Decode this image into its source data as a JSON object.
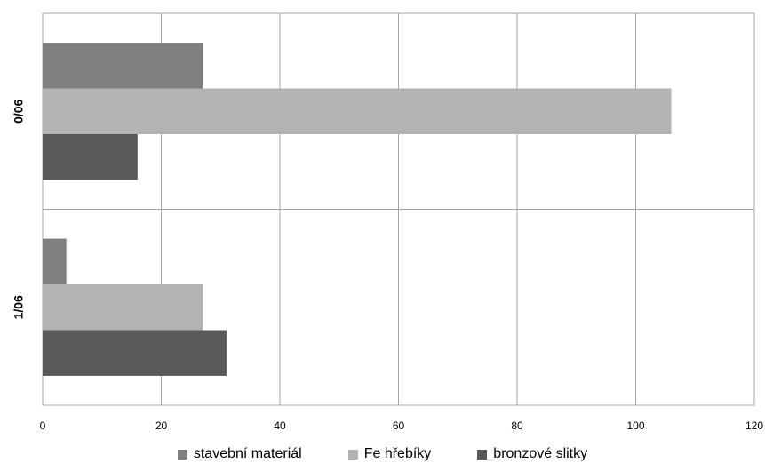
{
  "chart_data": {
    "type": "bar",
    "orientation": "horizontal",
    "title": "",
    "xlabel": "",
    "ylabel": "",
    "categories": [
      "0/06",
      "1/06"
    ],
    "series": [
      {
        "name": "stavební materiál",
        "color": "#808080",
        "values": [
          27,
          4
        ]
      },
      {
        "name": "Fe hřebíky",
        "color": "#b3b3b3",
        "values": [
          106,
          27
        ]
      },
      {
        "name": "bronzové slitky",
        "color": "#595959",
        "values": [
          16,
          31
        ]
      }
    ],
    "xlim": [
      0,
      120
    ],
    "x_ticks": [
      "0",
      "20",
      "40",
      "60",
      "80",
      "100",
      "120"
    ],
    "grid": "vertical",
    "legend_position": "bottom"
  }
}
